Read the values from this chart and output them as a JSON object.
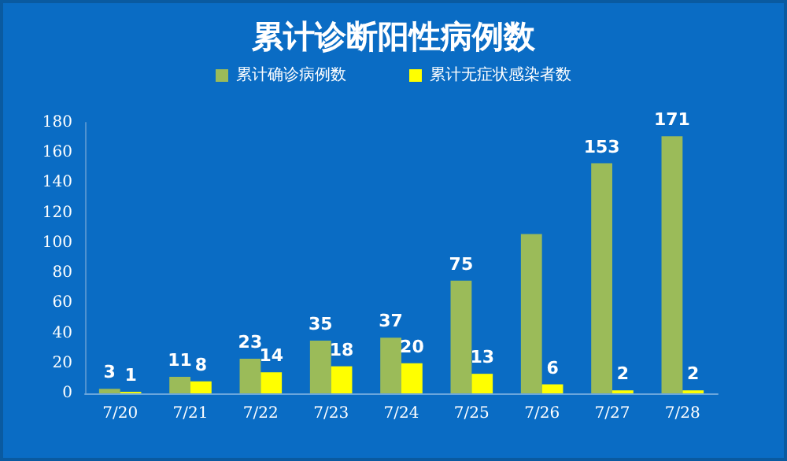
{
  "chart_data": {
    "type": "bar",
    "title": "累计诊断阳性病例数",
    "categories": [
      "7/20",
      "7/21",
      "7/22",
      "7/23",
      "7/24",
      "7/25",
      "7/26",
      "7/27",
      "7/28"
    ],
    "series": [
      {
        "name": "累计确诊病例数",
        "color": "#9bbb59",
        "values": [
          3,
          11,
          23,
          35,
          37,
          75,
          106,
          153,
          171
        ],
        "value_labels": [
          "3",
          "11",
          "23",
          "35",
          "37",
          "75",
          null,
          "153",
          "171"
        ]
      },
      {
        "name": "累计无症状感染者数",
        "color": "#ffff00",
        "values": [
          1,
          8,
          14,
          18,
          20,
          13,
          6,
          2,
          2
        ],
        "value_labels": [
          "1",
          "8",
          "14",
          "18",
          "20",
          "13",
          "6",
          "2",
          "2"
        ]
      }
    ],
    "ylim": [
      0,
      180
    ],
    "yticks": [
      0,
      20,
      40,
      60,
      80,
      100,
      120,
      140,
      160,
      180
    ],
    "grid": false,
    "legend": "top"
  }
}
